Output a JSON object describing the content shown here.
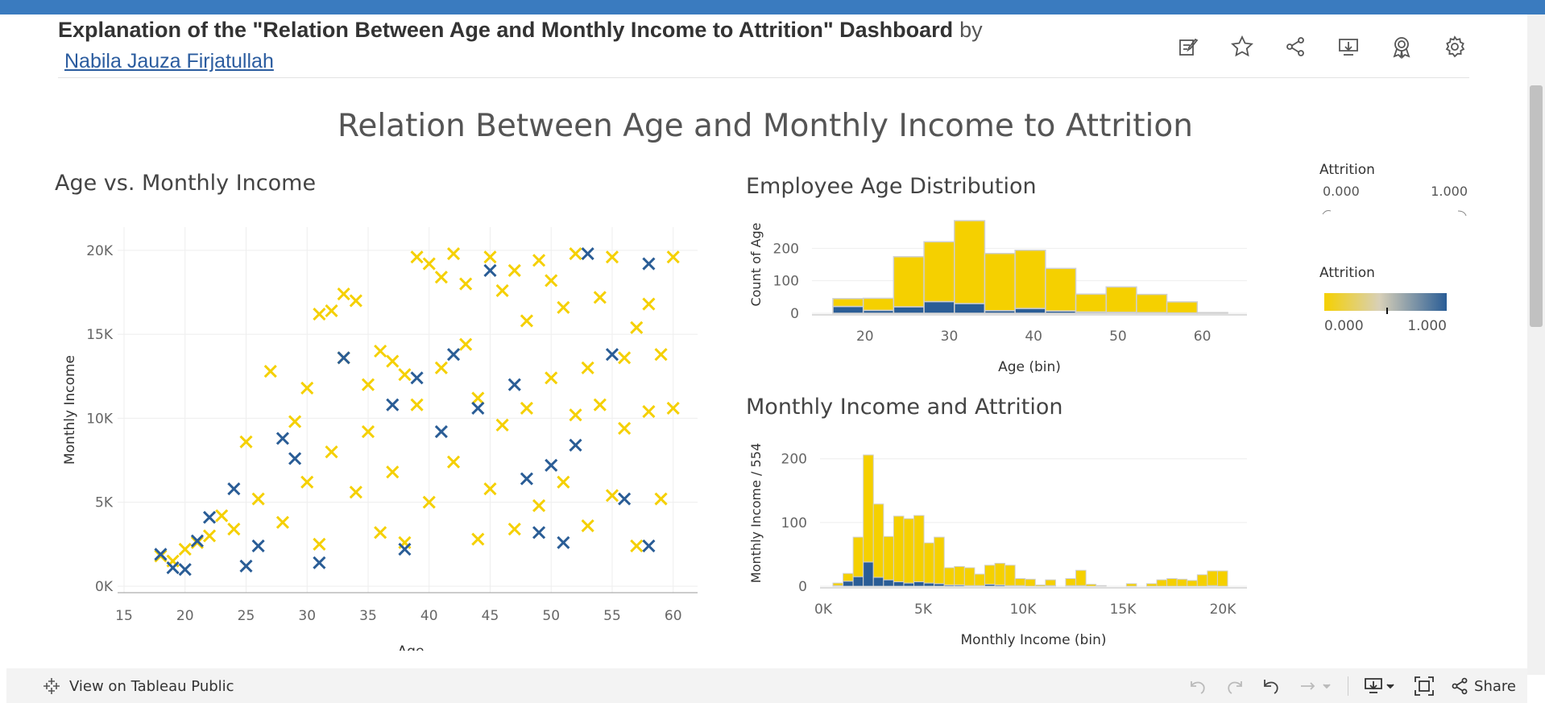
{
  "header": {
    "title": "Explanation of the \"Relation Between Age and Monthly Income to Attrition\" Dashboard",
    "by": "by",
    "author": "Nabila Jauza Firjatullah",
    "icons": [
      "edit-icon",
      "star-icon",
      "share-icon",
      "download-icon",
      "badge-icon",
      "gear-icon"
    ]
  },
  "dashboard": {
    "title": "Relation Between Age and Monthly Income to Attrition"
  },
  "legend": {
    "size_title": "Attrition",
    "size_min": "0.000",
    "size_max": "1.000",
    "color_title": "Attrition",
    "color_min": "0.000",
    "color_max": "1.000",
    "color_low": "#f5d000",
    "color_high": "#2a5d96"
  },
  "chart_data": [
    {
      "type": "scatter",
      "title": "Age vs. Monthly Income",
      "xlabel": "Age",
      "ylabel": "Monthly Income",
      "xlim": [
        15,
        62
      ],
      "ylim": [
        0,
        21000
      ],
      "xticks": [
        "15",
        "20",
        "25",
        "30",
        "35",
        "40",
        "45",
        "50",
        "55",
        "60"
      ],
      "yticks": [
        "0K",
        "5K",
        "10K",
        "15K",
        "20K"
      ],
      "marker": "x",
      "series": [
        {
          "name": "0",
          "points": [
            [
              18,
              1800
            ],
            [
              19,
              1500
            ],
            [
              20,
              2200
            ],
            [
              21,
              2600
            ],
            [
              22,
              3000
            ],
            [
              23,
              4200
            ],
            [
              24,
              3400
            ],
            [
              25,
              8600
            ],
            [
              26,
              5200
            ],
            [
              27,
              12800
            ],
            [
              28,
              3800
            ],
            [
              29,
              9800
            ],
            [
              30,
              11800
            ],
            [
              30,
              6200
            ],
            [
              31,
              16200
            ],
            [
              31,
              2500
            ],
            [
              32,
              16400
            ],
            [
              32,
              8000
            ],
            [
              33,
              17400
            ],
            [
              33,
              13600
            ],
            [
              34,
              17000
            ],
            [
              34,
              5600
            ],
            [
              35,
              12000
            ],
            [
              35,
              9200
            ],
            [
              36,
              14000
            ],
            [
              36,
              3200
            ],
            [
              37,
              13400
            ],
            [
              37,
              6800
            ],
            [
              38,
              12600
            ],
            [
              38,
              2600
            ],
            [
              39,
              19600
            ],
            [
              39,
              10800
            ],
            [
              40,
              19200
            ],
            [
              40,
              5000
            ],
            [
              41,
              18400
            ],
            [
              41,
              13000
            ],
            [
              42,
              19800
            ],
            [
              42,
              7400
            ],
            [
              43,
              18000
            ],
            [
              43,
              14400
            ],
            [
              44,
              11200
            ],
            [
              44,
              2800
            ],
            [
              45,
              19600
            ],
            [
              45,
              5800
            ],
            [
              46,
              17600
            ],
            [
              46,
              9600
            ],
            [
              47,
              18800
            ],
            [
              47,
              3400
            ],
            [
              48,
              15800
            ],
            [
              48,
              10600
            ],
            [
              49,
              19400
            ],
            [
              49,
              4800
            ],
            [
              50,
              18200
            ],
            [
              50,
              12400
            ],
            [
              51,
              16600
            ],
            [
              51,
              6200
            ],
            [
              52,
              19800
            ],
            [
              52,
              10200
            ],
            [
              53,
              13000
            ],
            [
              53,
              3600
            ],
            [
              54,
              17200
            ],
            [
              54,
              10800
            ],
            [
              55,
              19600
            ],
            [
              55,
              5400
            ],
            [
              56,
              13600
            ],
            [
              56,
              9400
            ],
            [
              57,
              15400
            ],
            [
              57,
              2400
            ],
            [
              58,
              16800
            ],
            [
              58,
              10400
            ],
            [
              59,
              13800
            ],
            [
              59,
              5200
            ],
            [
              60,
              19600
            ],
            [
              60,
              10600
            ]
          ]
        },
        {
          "name": "1",
          "points": [
            [
              18,
              1900
            ],
            [
              19,
              1100
            ],
            [
              20,
              1000
            ],
            [
              21,
              2700
            ],
            [
              22,
              4100
            ],
            [
              24,
              5800
            ],
            [
              25,
              1200
            ],
            [
              26,
              2400
            ],
            [
              28,
              8800
            ],
            [
              29,
              7600
            ],
            [
              31,
              1400
            ],
            [
              33,
              13600
            ],
            [
              37,
              10800
            ],
            [
              38,
              2200
            ],
            [
              39,
              12400
            ],
            [
              41,
              9200
            ],
            [
              42,
              13800
            ],
            [
              44,
              10600
            ],
            [
              45,
              18800
            ],
            [
              47,
              12000
            ],
            [
              48,
              6400
            ],
            [
              49,
              3200
            ],
            [
              50,
              7200
            ],
            [
              51,
              2600
            ],
            [
              52,
              8400
            ],
            [
              53,
              19800
            ],
            [
              55,
              13800
            ],
            [
              56,
              5200
            ],
            [
              58,
              19200
            ],
            [
              58,
              2400
            ]
          ]
        }
      ]
    },
    {
      "type": "bar",
      "title": "Employee Age Distribution",
      "xlabel": "Age (bin)",
      "ylabel": "Count of Age",
      "xticks": [
        "20",
        "30",
        "40",
        "50",
        "60"
      ],
      "yticks": [
        "0",
        "100",
        "200"
      ],
      "ylim": [
        0,
        300
      ],
      "categories": [
        "18",
        "21",
        "25",
        "28",
        "32",
        "35",
        "39",
        "42",
        "46",
        "49",
        "53",
        "56",
        "60"
      ],
      "series": [
        {
          "name": "Attrition 0",
          "values": [
            24,
            37,
            154,
            184,
            255,
            176,
            179,
            131,
            55,
            78,
            56,
            34,
            2
          ]
        },
        {
          "name": "Attrition 1",
          "values": [
            21,
            9,
            20,
            36,
            30,
            8,
            15,
            7,
            4,
            3,
            2,
            1,
            0
          ]
        }
      ]
    },
    {
      "type": "bar",
      "title": "Monthly Income and Attrition",
      "xlabel": "Monthly Income (bin)",
      "ylabel": "Monthly Income / 554",
      "xticks": [
        "0K",
        "5K",
        "10K",
        "15K",
        "20K"
      ],
      "yticks": [
        "0",
        "100",
        "200"
      ],
      "ylim": [
        0,
        220
      ],
      "categories": [
        "1000",
        "1500",
        "2000",
        "2500",
        "3000",
        "3500",
        "4000",
        "4500",
        "5000",
        "5500",
        "6000",
        "6500",
        "7000",
        "7500",
        "8000",
        "8500",
        "9000",
        "9500",
        "10000",
        "10500",
        "11000",
        "11500",
        "12000",
        "12500",
        "13000",
        "13500",
        "14000",
        "14500",
        "15000",
        "15500",
        "16000",
        "16500",
        "17000",
        "17500",
        "18000",
        "18500",
        "19000",
        "19500",
        "20000"
      ],
      "series": [
        {
          "name": "Attrition 0",
          "values": [
            4,
            12,
            62,
            168,
            115,
            68,
            103,
            101,
            104,
            63,
            73,
            27,
            29,
            28,
            18,
            30,
            34,
            32,
            11,
            11,
            2,
            9,
            0,
            11,
            24,
            3,
            1,
            0,
            0,
            4,
            0,
            4,
            10,
            12,
            11,
            9,
            18,
            23,
            24
          ]
        },
        {
          "name": "Attrition 1",
          "values": [
            1,
            8,
            15,
            38,
            14,
            10,
            7,
            5,
            7,
            5,
            4,
            2,
            2,
            1,
            1,
            3,
            2,
            1,
            1,
            0,
            0,
            1,
            0,
            1,
            1,
            0,
            0,
            0,
            0,
            0,
            0,
            0,
            0,
            0,
            0,
            0,
            0,
            1,
            0
          ]
        }
      ]
    }
  ],
  "bottombar": {
    "view_label": "View on Tableau Public",
    "share_label": "Share"
  }
}
